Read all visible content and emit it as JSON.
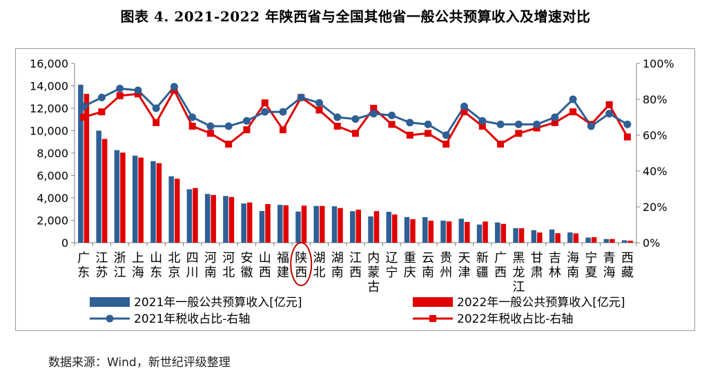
{
  "title": "图表 4. 2021-2022 年陕西省与全国其他省一般公共预算收入及增速对比",
  "source": "数据来源：Wind，新世纪评级整理",
  "colors": {
    "s2021": "#2E5F95",
    "s2022": "#E00000",
    "highlight": "#C00000",
    "axis": "#808080"
  },
  "chart_data": {
    "type": "bar",
    "categories": [
      "广东",
      "江苏",
      "浙江",
      "上海",
      "山东",
      "北京",
      "四川",
      "河南",
      "河北",
      "安徽",
      "山西",
      "福建",
      "陕西",
      "湖北",
      "湖南",
      "江西",
      "内蒙古",
      "辽宁",
      "重庆",
      "云南",
      "贵州",
      "天津",
      "新疆",
      "广西",
      "黑龙江",
      "甘肃",
      "吉林",
      "海南",
      "宁夏",
      "青海",
      "西藏"
    ],
    "highlight_category": "陕西",
    "series": [
      {
        "name": "2021年一般公共预算收入[亿元]",
        "type": "bar",
        "axis": "left",
        "values": [
          14100,
          10000,
          8260,
          7770,
          7280,
          5930,
          4770,
          4350,
          4170,
          3500,
          2830,
          3380,
          2780,
          3280,
          3250,
          2810,
          2350,
          2760,
          2290,
          2280,
          1970,
          2140,
          1620,
          1810,
          1300,
          1120,
          1180,
          920,
          460,
          330,
          220
        ]
      },
      {
        "name": "2022年一般公共预算收入[亿元]",
        "type": "bar",
        "axis": "right_bar",
        "values": [
          13280,
          9260,
          8040,
          7600,
          7100,
          5710,
          4880,
          4260,
          4080,
          3590,
          3450,
          3340,
          3310,
          3280,
          3100,
          2950,
          2820,
          2520,
          2100,
          1960,
          1900,
          1850,
          1890,
          1680,
          1290,
          910,
          850,
          830,
          500,
          330,
          180
        ]
      },
      {
        "name": "2021年税收占比-右轴",
        "type": "line",
        "axis": "right",
        "values": [
          0.76,
          0.81,
          0.86,
          0.85,
          0.75,
          0.87,
          0.7,
          0.65,
          0.65,
          0.68,
          0.73,
          0.73,
          0.81,
          0.78,
          0.7,
          0.69,
          0.72,
          0.71,
          0.67,
          0.66,
          0.6,
          0.76,
          0.68,
          0.66,
          0.66,
          0.66,
          0.7,
          0.8,
          0.65,
          0.72,
          0.66
        ]
      },
      {
        "name": "2022年税收占比-右轴",
        "type": "line",
        "axis": "right",
        "values": [
          0.7,
          0.73,
          0.82,
          0.83,
          0.67,
          0.85,
          0.65,
          0.61,
          0.55,
          0.63,
          0.78,
          0.63,
          0.81,
          0.74,
          0.65,
          0.61,
          0.75,
          0.66,
          0.6,
          0.61,
          0.55,
          0.73,
          0.65,
          0.55,
          0.61,
          0.64,
          0.67,
          0.73,
          0.66,
          0.77,
          0.59
        ]
      }
    ],
    "left_axis": {
      "min": 0,
      "max": 16000,
      "ticks": [
        "0",
        "2,000",
        "4,000",
        "6,000",
        "8,000",
        "10,000",
        "12,000",
        "14,000",
        "16,000"
      ]
    },
    "right_axis": {
      "min": 0,
      "max": 1,
      "ticks": [
        "0%",
        "20%",
        "40%",
        "60%",
        "80%",
        "100%"
      ]
    },
    "legend": [
      {
        "label": "2021年一般公共预算收入[亿元]",
        "kind": "bar",
        "color_key": "s2021"
      },
      {
        "label": "2022年一般公共预算收入[亿元]",
        "kind": "bar",
        "color_key": "s2022"
      },
      {
        "label": "2021年税收占比-右轴",
        "kind": "line-circle",
        "color_key": "s2021"
      },
      {
        "label": "2022年税收占比-右轴",
        "kind": "line-square",
        "color_key": "s2022"
      }
    ]
  }
}
